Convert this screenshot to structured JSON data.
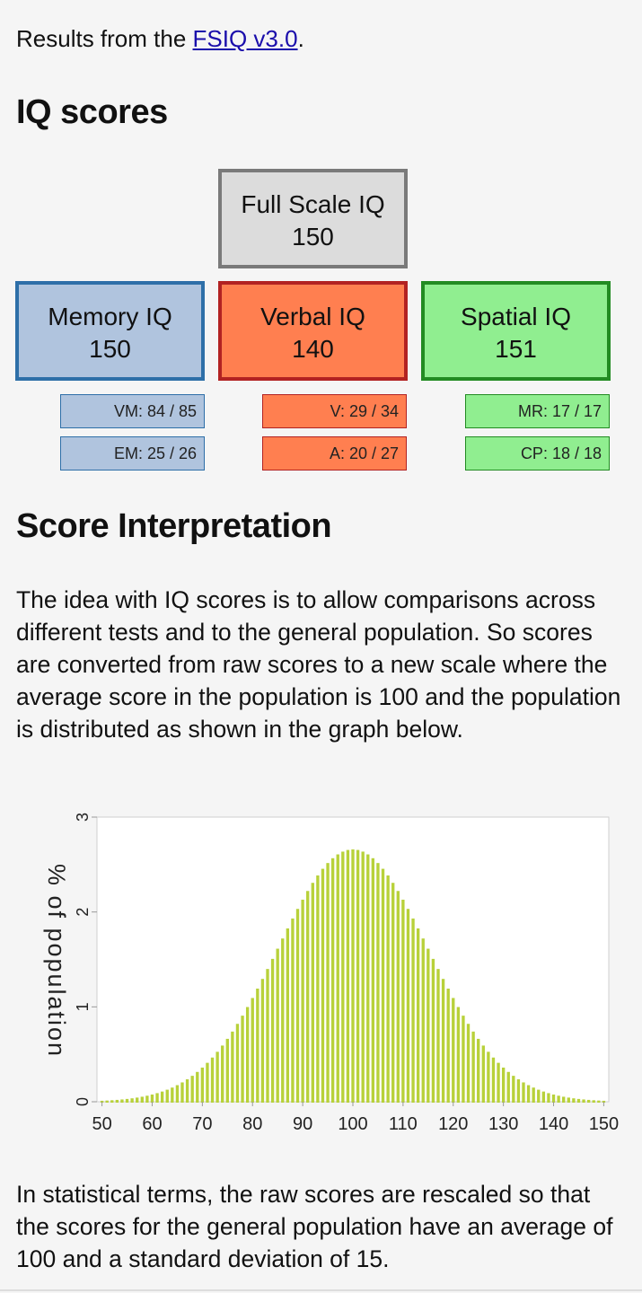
{
  "intro": {
    "prefix": "Results from the ",
    "link": "FSIQ v3.0",
    "suffix": "."
  },
  "scores": {
    "title": "IQ scores",
    "full_scale": {
      "label": "Full Scale IQ",
      "value": "150"
    },
    "memory": {
      "label": "Memory IQ",
      "value": "150"
    },
    "verbal": {
      "label": "Verbal IQ",
      "value": "140"
    },
    "spatial": {
      "label": "Spatial IQ",
      "value": "151"
    },
    "subscores": {
      "vm": "VM: 84 / 85",
      "em": "EM: 25 / 26",
      "v": "V: 29 / 34",
      "a": "A: 20 / 27",
      "mr": "MR: 17 / 17",
      "cp": "CP: 18 / 18"
    }
  },
  "interpretation": {
    "title": "Score Interpretation",
    "para1": "The idea with IQ scores is to allow comparisons across different tests and to the general population. So scores are converted from raw scores to a new scale where the average score in the population is 100 and the population is distributed as shown in the graph below.",
    "para2": "In statistical terms, the raw scores are rescaled so that the scores for the general population have an average of 100 and a standard deviation of 15."
  },
  "colors": {
    "full_bg": "#dcdcdc",
    "full_border": "#7a7a7a",
    "memory_bg": "#b0c4de",
    "memory_border": "#2e6fa8",
    "verbal_bg": "#ff7f50",
    "verbal_border": "#b22222",
    "spatial_bg": "#90ee90",
    "spatial_border": "#228b22",
    "bar": "#b8d13a"
  },
  "chart_data": {
    "type": "bar",
    "ylabel": "% of population",
    "x_start": 50,
    "x_end": 150,
    "x_step": 1,
    "mean": 100,
    "sd": 15,
    "xticks": [
      50,
      60,
      70,
      80,
      90,
      100,
      110,
      120,
      130,
      140,
      150
    ],
    "yticks": [
      0,
      1,
      2,
      3
    ],
    "ylim": [
      0,
      3
    ],
    "xlim": [
      49,
      151
    ]
  }
}
